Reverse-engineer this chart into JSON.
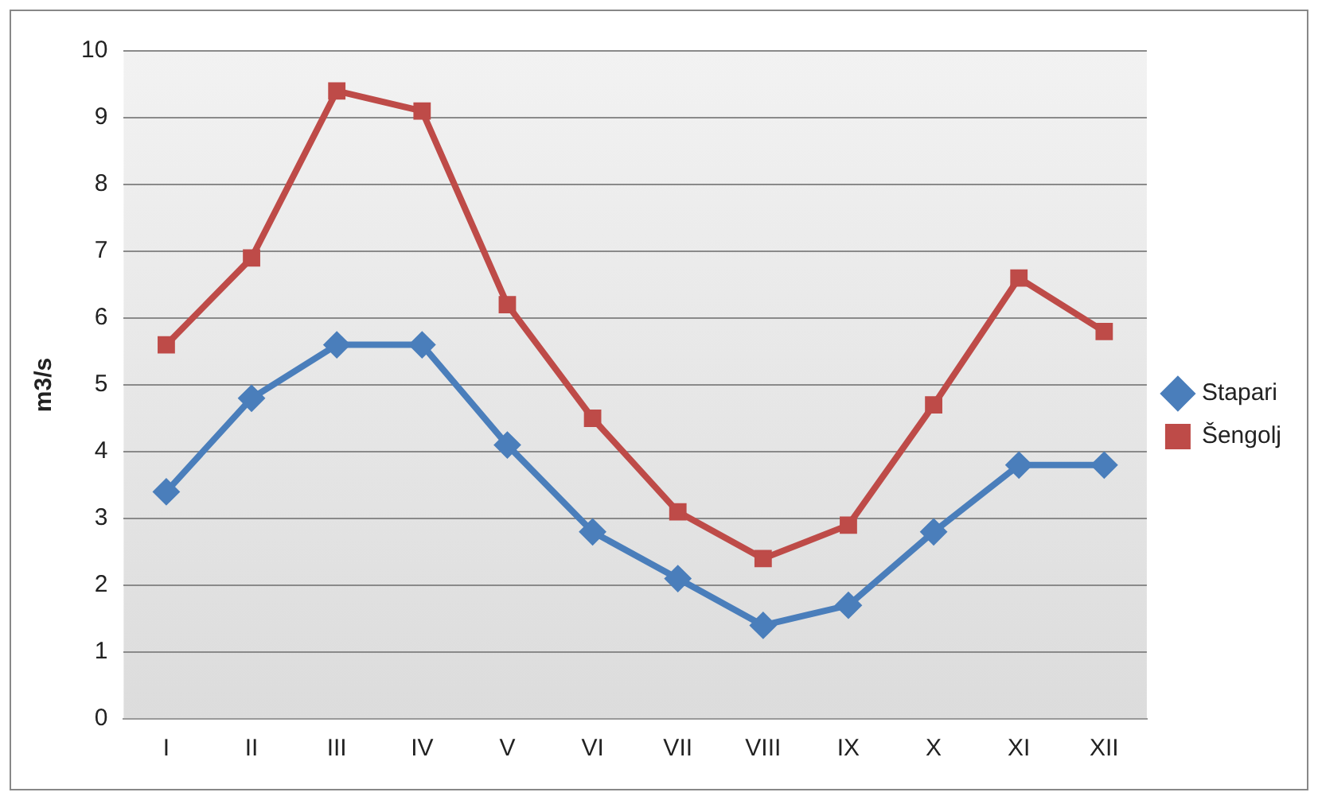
{
  "chart_data": {
    "type": "line",
    "ylabel": "m3/s",
    "categories": [
      "I",
      "II",
      "III",
      "IV",
      "V",
      "VI",
      "VII",
      "VIII",
      "IX",
      "X",
      "XI",
      "XII"
    ],
    "series": [
      {
        "name": "Stapari",
        "color": "#4a7ebb",
        "marker": "diamond",
        "values": [
          3.4,
          4.8,
          5.6,
          5.6,
          4.1,
          2.8,
          2.1,
          1.4,
          1.7,
          2.8,
          3.8,
          3.8
        ]
      },
      {
        "name": "Šengolj",
        "color": "#be4b48",
        "marker": "square",
        "values": [
          5.6,
          6.9,
          9.4,
          9.1,
          6.2,
          4.5,
          3.1,
          2.4,
          2.9,
          4.7,
          6.6,
          5.8
        ]
      }
    ],
    "ylim": [
      0,
      10
    ],
    "yticks": [
      0,
      1,
      2,
      3,
      4,
      5,
      6,
      7,
      8,
      9,
      10
    ],
    "grid": "y",
    "legend": "right"
  }
}
